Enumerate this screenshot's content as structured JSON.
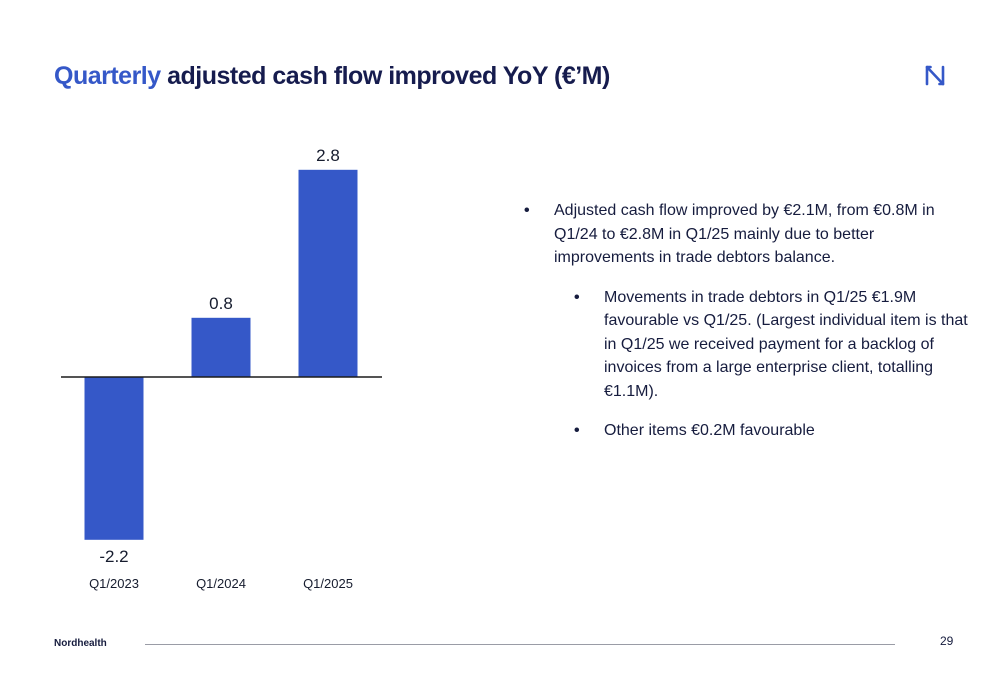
{
  "title": {
    "accent": "Quarterly",
    "rest": " adjusted cash flow improved YoY (€’M)"
  },
  "logo": {
    "icon": "nordhealth-logo-icon",
    "color": "#3558c8"
  },
  "chart_data": {
    "type": "bar",
    "categories": [
      "Q1/2023",
      "Q1/2024",
      "Q1/2025"
    ],
    "values": [
      -2.2,
      0.8,
      2.8
    ],
    "data_labels": [
      "-2.2",
      "0.8",
      "2.8"
    ],
    "title": "",
    "xlabel": "",
    "ylabel": "",
    "ylim": [
      -2.2,
      2.8
    ],
    "grid": false,
    "legend": "none",
    "bar_color": "#3558c8",
    "baseline_color": "#1b1b1b"
  },
  "bullets": {
    "main": "Adjusted cash flow improved by €2.1M, from €0.8M in Q1/24 to €2.8M in Q1/25 mainly due to better improvements in trade debtors balance.",
    "sub": [
      "Movements in trade debtors in Q1/25 €1.9M favourable vs Q1/25. (Largest individual item is that in Q1/25 we received payment for a backlog of invoices from a large enterprise client, totalling €1.1M).",
      "Other items €0.2M favourable"
    ],
    "marker": "•"
  },
  "footer": {
    "brand": "Nordhealth",
    "page_number": "29"
  }
}
